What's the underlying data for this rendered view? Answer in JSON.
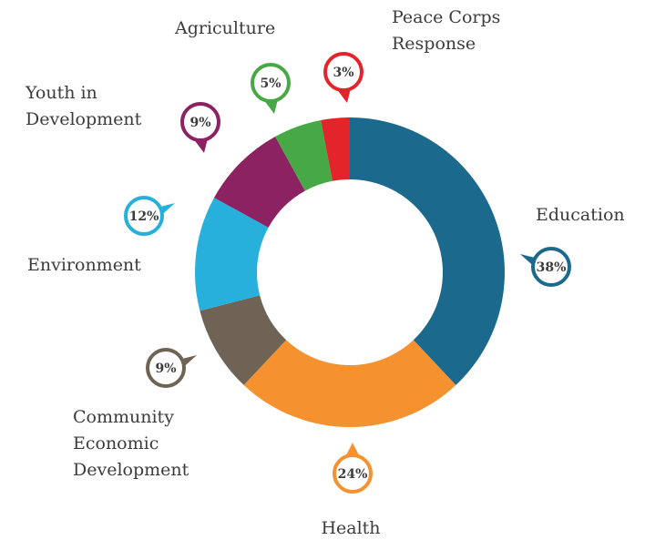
{
  "chart_data": {
    "type": "pie",
    "donut": true,
    "title": "",
    "unit": "%",
    "slices": [
      {
        "label": [
          "Education"
        ],
        "value": 38,
        "display": "38%",
        "color": "#1b6a8e"
      },
      {
        "label": [
          "Health"
        ],
        "value": 24,
        "display": "24%",
        "color": "#f5922f"
      },
      {
        "label": [
          "Community",
          "Economic",
          "Development"
        ],
        "value": 9,
        "display": "9%",
        "color": "#6e6355"
      },
      {
        "label": [
          "Environment"
        ],
        "value": 12,
        "display": "12%",
        "color": "#27b0dc"
      },
      {
        "label": [
          "Youth in",
          "Development"
        ],
        "value": 9,
        "display": "9%",
        "color": "#8c2262"
      },
      {
        "label": [
          "Agriculture"
        ],
        "value": 5,
        "display": "5%",
        "color": "#47a846"
      },
      {
        "label": [
          "Peace Corps",
          "Response"
        ],
        "value": 3,
        "display": "3%",
        "color": "#e3242b"
      }
    ]
  }
}
